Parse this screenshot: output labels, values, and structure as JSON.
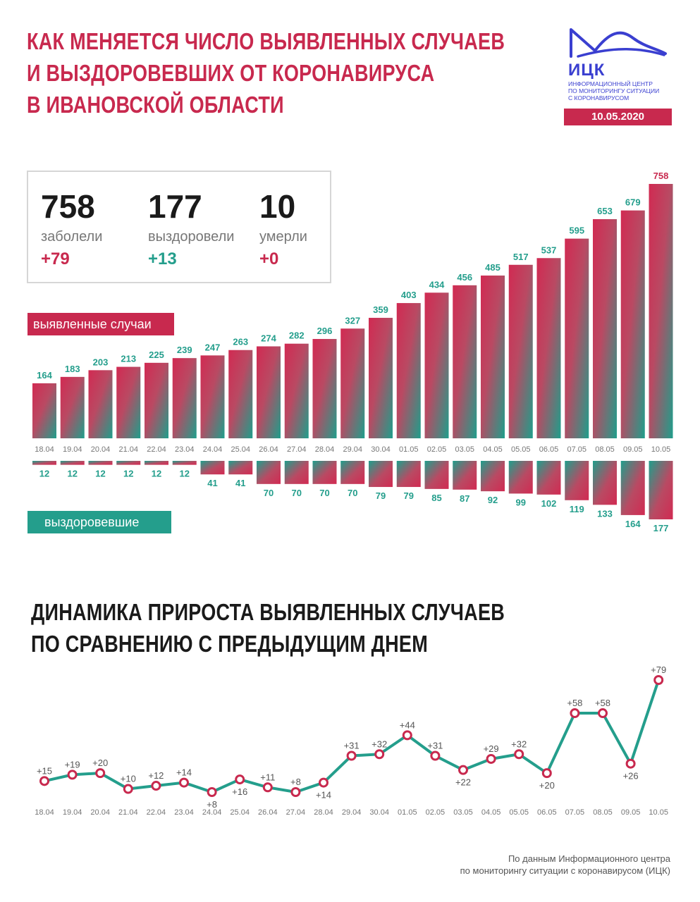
{
  "header": {
    "title_lines": [
      "КАК МЕНЯЕТСЯ ЧИСЛО ВЫЯВЛЕННЫХ СЛУЧАЕВ",
      "И ВЫЗДОРОВЕВШИХ ОТ КОРОНАВИРУСА",
      "В ИВАНОВСКОЙ ОБЛАСТИ"
    ]
  },
  "logo": {
    "abbr": "ИЦК",
    "text_lines": [
      "ИНФОРМАЦИОННЫЙ ЦЕНТР",
      "ПО МОНИТОРИНГУ СИТУАЦИИ",
      "С КОРОНАВИРУСОМ"
    ],
    "date": "10.05.2020",
    "color": "#3a3fd0"
  },
  "stats": [
    {
      "value": "758",
      "label": "заболели",
      "delta": "+79",
      "delta_color": "#c8294e"
    },
    {
      "value": "177",
      "label": "выздоровели",
      "delta": "+13",
      "delta_color": "#249e8c"
    },
    {
      "value": "10",
      "label": "умерли",
      "delta": "+0",
      "delta_color": "#c8294e"
    }
  ],
  "labels": {
    "cases": "выявленные случаи",
    "recovered": "выздоровевшие"
  },
  "colors": {
    "accent_red": "#c8294e",
    "accent_teal": "#249e8c"
  },
  "chart_data": [
    {
      "type": "bar",
      "categories": [
        "18.04",
        "19.04",
        "20.04",
        "21.04",
        "22.04",
        "23.04",
        "24.04",
        "25.04",
        "26.04",
        "27.04",
        "28.04",
        "29.04",
        "30.04",
        "01.05",
        "02.05",
        "03.05",
        "04.05",
        "05.05",
        "06.05",
        "07.05",
        "08.05",
        "09.05",
        "10.05"
      ],
      "series": [
        {
          "name": "выявленные случаи",
          "values": [
            164,
            183,
            203,
            213,
            225,
            239,
            247,
            263,
            274,
            282,
            296,
            327,
            359,
            403,
            434,
            456,
            485,
            517,
            537,
            595,
            653,
            679,
            758
          ]
        },
        {
          "name": "выздоровевшие",
          "values": [
            12,
            12,
            12,
            12,
            12,
            12,
            41,
            41,
            70,
            70,
            70,
            70,
            79,
            79,
            85,
            87,
            92,
            99,
            102,
            119,
            133,
            164,
            177
          ]
        }
      ]
    },
    {
      "type": "line",
      "title": "ДИНАМИКА ПРИРОСТА ВЫЯВЛЕННЫХ СЛУЧАЕВ ПО СРАВНЕНИЮ С ПРЕДЫДУЩИМ ДНЕМ",
      "title_lines": [
        "ДИНАМИКА ПРИРОСТА ВЫЯВЛЕННЫХ СЛУЧАЕВ",
        "ПО СРАВНЕНИЮ С ПРЕДЫДУЩИМ ДНЕМ"
      ],
      "categories": [
        "18.04",
        "19.04",
        "20.04",
        "21.04",
        "22.04",
        "23.04",
        "24.04",
        "25.04",
        "26.04",
        "27.04",
        "28.04",
        "29.04",
        "30.04",
        "01.05",
        "02.05",
        "03.05",
        "04.05",
        "05.05",
        "06.05",
        "07.05",
        "08.05",
        "09.05",
        "10.05"
      ],
      "values": [
        15,
        19,
        20,
        10,
        12,
        14,
        8,
        16,
        11,
        8,
        14,
        31,
        32,
        44,
        31,
        22,
        29,
        32,
        20,
        58,
        58,
        26,
        79
      ],
      "labels": [
        "+15",
        "+19",
        "+20",
        "+10",
        "+12",
        "+14",
        "+8",
        "+16",
        "+11",
        "+8",
        "+14",
        "+31",
        "+32",
        "+44",
        "+31",
        "+22",
        "+29",
        "+32",
        "+20",
        "+58",
        "+58",
        "+26",
        "+79"
      ],
      "label_positions": [
        "above",
        "above",
        "above",
        "above",
        "above",
        "above",
        "below",
        "below",
        "above",
        "above",
        "below",
        "above",
        "above",
        "above",
        "above",
        "below",
        "above",
        "above",
        "below",
        "above",
        "above",
        "below",
        "above"
      ]
    }
  ],
  "footer": {
    "lines": [
      "По данным Информационного центра",
      "по мониторингу ситуации с коронавирусом (ИЦК)"
    ]
  }
}
